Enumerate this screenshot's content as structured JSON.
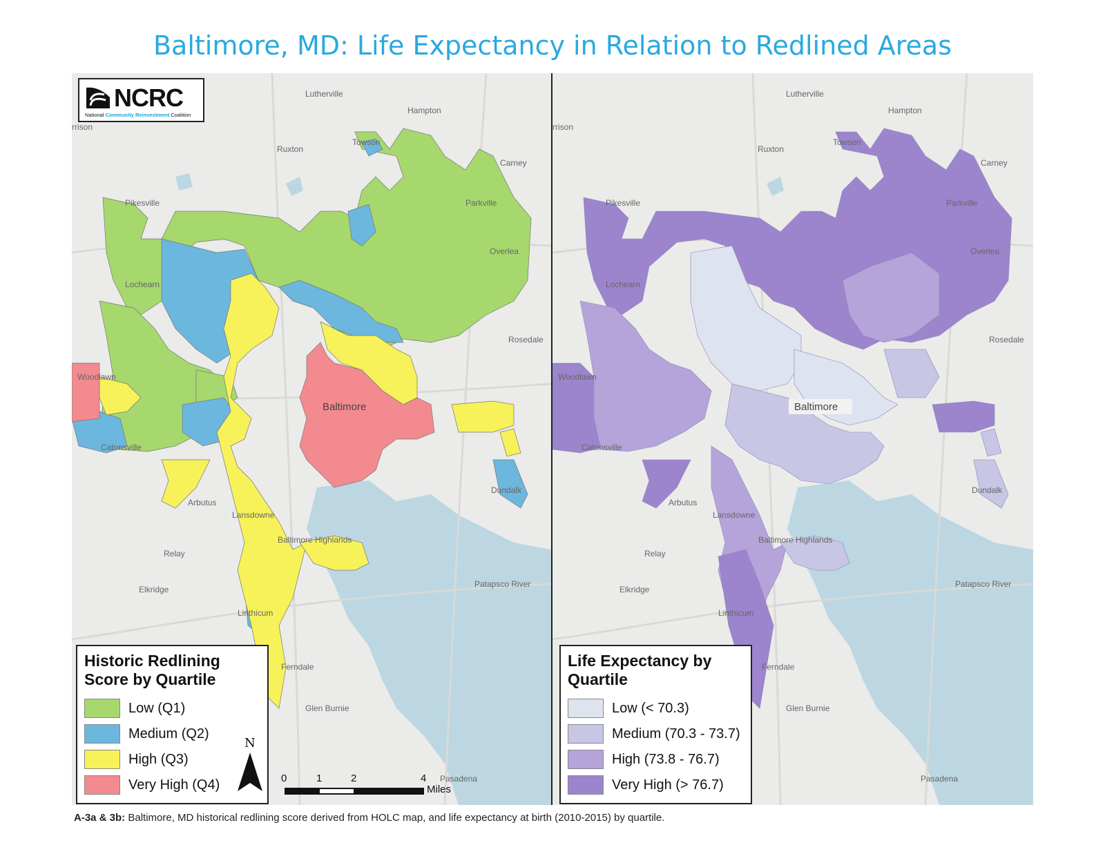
{
  "title": "Baltimore, MD: Life Expectancy in Relation to Redlined Areas",
  "logo": {
    "name": "NCRC",
    "tagline_pre": "National ",
    "tagline_highlight": "Community Reinvestment",
    "tagline_post": " Coalition"
  },
  "places": {
    "lutherville": "Lutherville",
    "hampton": "Hampton",
    "towson": "Towson",
    "carney": "Carney",
    "pikesville": "Pikesville",
    "parkville": "Parkville",
    "overlea": "Overlea",
    "lochearn": "Lochearn",
    "rosedale": "Rosedale",
    "woodlawn": "Woodlawn",
    "baltimore": "Baltimore",
    "catonsville": "Catonsville",
    "arbutus": "Arbutus",
    "lansdowne": "Lansdowne",
    "dundalk": "Dundalk",
    "baltimore_highlands": "Baltimore Highlands",
    "relay": "Relay",
    "elkridge": "Elkridge",
    "linthicum": "Linthicum",
    "ferndale": "Ferndale",
    "glen_burnie": "Glen Burnie",
    "pasadena": "Pasadena",
    "patapsco_river": "Patapsco River",
    "ruxton": "Ruxton",
    "riderwood": "rrison"
  },
  "left_legend": {
    "title_line1": "Historic Redlining",
    "title_line2": "Score by Quartile",
    "items": [
      {
        "label": "Low (Q1)",
        "color": "#a6d86e"
      },
      {
        "label": "Medium (Q2)",
        "color": "#6bb7de"
      },
      {
        "label": "High (Q3)",
        "color": "#f7f25a"
      },
      {
        "label": "Very High (Q4)",
        "color": "#f38a8f"
      }
    ]
  },
  "right_legend": {
    "title_line1": "Life Expectancy by",
    "title_line2": "Quartile",
    "items": [
      {
        "label": "Low (< 70.3)",
        "color": "#dde3ef"
      },
      {
        "label": "Medium (70.3 - 73.7)",
        "color": "#c7c6e5"
      },
      {
        "label": "High (73.8 - 76.7)",
        "color": "#b5a4da"
      },
      {
        "label": "Very High (> 76.7)",
        "color": "#9c85cc"
      }
    ]
  },
  "scale": {
    "ticks": [
      "0",
      "1",
      "2",
      "4"
    ],
    "unit": "Miles"
  },
  "north_label": "N",
  "caption": {
    "prefix": "A-3a & 3b:",
    "text": " Baltimore, MD historical redlining score derived from HOLC map, and life expectancy at birth (2010-2015) by quartile."
  },
  "colors": {
    "water": "#bcd7e2",
    "land": "#ebebea",
    "title": "#29a9e0"
  }
}
